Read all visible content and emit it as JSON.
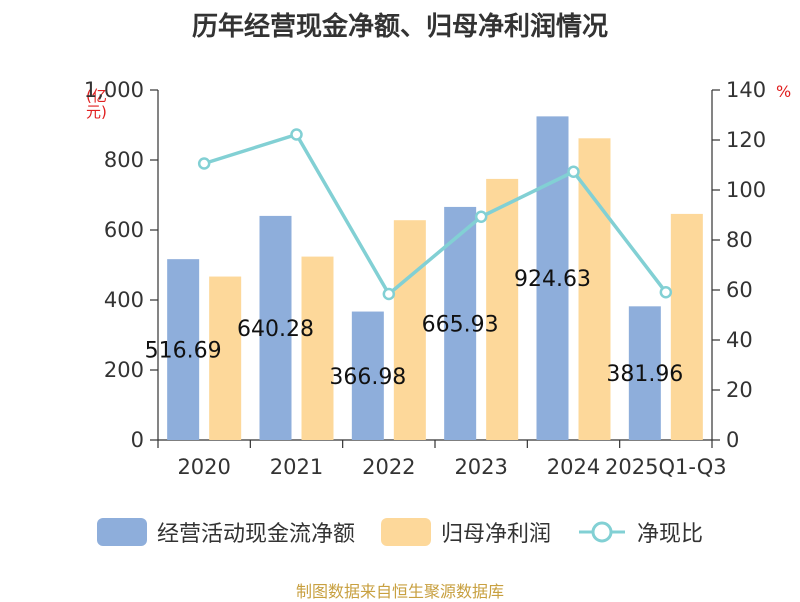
{
  "chart_data": {
    "type": "bar",
    "title": "历年经营现金净额、归母净利润情况",
    "categories": [
      "2020",
      "2021",
      "2022",
      "2023",
      "2024",
      "2025Q1-Q3"
    ],
    "series": [
      {
        "name": "经营活动现金流净额",
        "type": "bar",
        "axis": "left",
        "color": "#8eaedb",
        "values": [
          516.69,
          640.28,
          366.98,
          665.93,
          924.63,
          381.96
        ],
        "labels": [
          "516.69",
          "640.28",
          "366.98",
          "665.93",
          "924.63",
          "381.96"
        ]
      },
      {
        "name": "归母净利润",
        "type": "bar",
        "axis": "left",
        "color": "#fdd89a",
        "values": [
          467,
          524,
          628,
          746,
          862,
          646
        ]
      },
      {
        "name": "净现比",
        "type": "line",
        "axis": "right",
        "color": "#82d0d4",
        "values": [
          110.6,
          122.2,
          58.4,
          89.3,
          107.3,
          59.1
        ]
      }
    ],
    "y_left": {
      "label": "(亿元)",
      "min": 0,
      "max": 1000,
      "ticks": [
        "0",
        "200",
        "400",
        "600",
        "800",
        "1,000"
      ]
    },
    "y_right": {
      "label": "%",
      "min": 0,
      "max": 140,
      "ticks": [
        "0",
        "20",
        "40",
        "60",
        "80",
        "100",
        "120",
        "140"
      ]
    },
    "legend_position": "bottom"
  },
  "legend": [
    {
      "label": "经营活动现金流净额",
      "color": "#8eaedb",
      "kind": "bar"
    },
    {
      "label": "归母净利润",
      "color": "#fdd89a",
      "kind": "bar"
    },
    {
      "label": "净现比",
      "color": "#82d0d4",
      "kind": "line"
    }
  ],
  "source": "制图数据来自恒生聚源数据库"
}
